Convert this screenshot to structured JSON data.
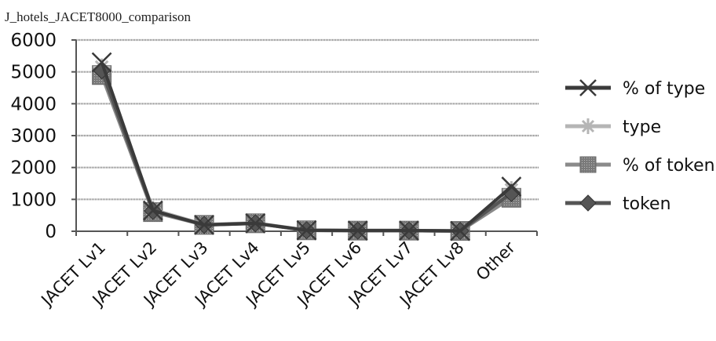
{
  "chart_data": {
    "type": "line",
    "title": "J_hotels_JACET8000_comparison",
    "categories": [
      "JACET Lv1",
      "JACET Lv2",
      "JACET Lv3",
      "JACET Lv4",
      "JACET Lv5",
      "JACET Lv6",
      "JACET Lv7",
      "JACET Lv8",
      "Other"
    ],
    "ylim": [
      0,
      6000
    ],
    "yticks": [
      0,
      1000,
      2000,
      3000,
      4000,
      5000,
      6000
    ],
    "grid": true,
    "legend_position": "right",
    "series": [
      {
        "name": "% of type",
        "marker": "x",
        "color": "#3a3a3a",
        "values": [
          5300,
          650,
          200,
          250,
          30,
          20,
          20,
          10,
          1400
        ]
      },
      {
        "name": "type",
        "marker": "star",
        "color": "#b5b5b5",
        "values": [
          5150,
          680,
          210,
          260,
          30,
          20,
          20,
          10,
          1300
        ]
      },
      {
        "name": "% of token",
        "marker": "square",
        "color": "#8a8a8a",
        "values": [
          4900,
          600,
          200,
          250,
          30,
          20,
          20,
          10,
          1050
        ]
      },
      {
        "name": "token",
        "marker": "diamond",
        "color": "#555555",
        "values": [
          5050,
          640,
          200,
          250,
          30,
          20,
          20,
          10,
          1200
        ]
      }
    ]
  }
}
